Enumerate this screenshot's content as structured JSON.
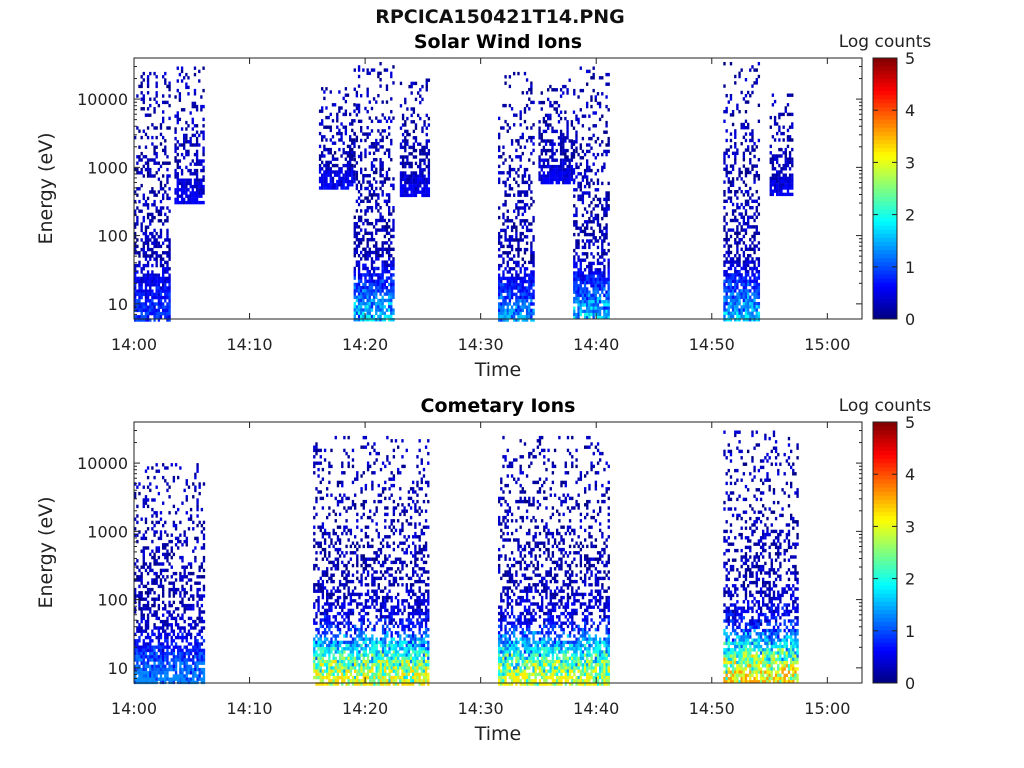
{
  "figure": {
    "title": "RPCICA150421T14.PNG"
  },
  "chart_data": [
    {
      "type": "heatmap",
      "title": "Solar Wind Ions",
      "xlabel": "Time",
      "ylabel": "Energy (eV)",
      "x_ticks": [
        "14:00",
        "14:10",
        "14:20",
        "14:30",
        "14:40",
        "14:50",
        "15:00"
      ],
      "x_tick_minutes": [
        0,
        10,
        20,
        30,
        40,
        50,
        60
      ],
      "xlim_minutes": [
        0,
        63
      ],
      "yscale": "log",
      "ylim": [
        6,
        40000
      ],
      "y_ticks": [
        10,
        100,
        1000,
        10000
      ],
      "y_tick_labels": [
        "10",
        "100",
        "1000",
        "10000"
      ],
      "colorbar": {
        "label": "Log counts",
        "ticks": [
          0,
          1,
          2,
          3,
          4,
          5
        ],
        "range": [
          0,
          5
        ],
        "colormap": "jet"
      },
      "bursts": [
        {
          "t_start": 0.0,
          "t_end": 3.0,
          "e_min": 6,
          "e_max": 25000,
          "peak": 1.0
        },
        {
          "t_start": 3.5,
          "t_end": 6.0,
          "e_min": 300,
          "e_max": 30000,
          "peak": 0.6
        },
        {
          "t_start": 16.0,
          "t_end": 19.0,
          "e_min": 500,
          "e_max": 15000,
          "peak": 0.7
        },
        {
          "t_start": 19.0,
          "t_end": 22.5,
          "e_min": 6,
          "e_max": 35000,
          "peak": 2.0
        },
        {
          "t_start": 23.0,
          "t_end": 25.5,
          "e_min": 400,
          "e_max": 20000,
          "peak": 0.6
        },
        {
          "t_start": 31.5,
          "t_end": 34.5,
          "e_min": 6,
          "e_max": 25000,
          "peak": 1.6
        },
        {
          "t_start": 35.0,
          "t_end": 38.0,
          "e_min": 600,
          "e_max": 20000,
          "peak": 0.6
        },
        {
          "t_start": 38.0,
          "t_end": 41.0,
          "e_min": 6,
          "e_max": 30000,
          "peak": 2.0
        },
        {
          "t_start": 51.0,
          "t_end": 54.0,
          "e_min": 6,
          "e_max": 35000,
          "peak": 1.9
        },
        {
          "t_start": 55.0,
          "t_end": 57.0,
          "e_min": 400,
          "e_max": 15000,
          "peak": 0.6
        }
      ]
    },
    {
      "type": "heatmap",
      "title": "Cometary Ions",
      "xlabel": "Time",
      "ylabel": "Energy (eV)",
      "x_ticks": [
        "14:00",
        "14:10",
        "14:20",
        "14:30",
        "14:40",
        "14:50",
        "15:00"
      ],
      "x_tick_minutes": [
        0,
        10,
        20,
        30,
        40,
        50,
        60
      ],
      "xlim_minutes": [
        0,
        63
      ],
      "yscale": "log",
      "ylim": [
        6,
        40000
      ],
      "y_ticks": [
        10,
        100,
        1000,
        10000
      ],
      "y_tick_labels": [
        "10",
        "100",
        "1000",
        "10000"
      ],
      "colorbar": {
        "label": "Log counts",
        "ticks": [
          0,
          1,
          2,
          3,
          4,
          5
        ],
        "range": [
          0,
          5
        ],
        "colormap": "jet"
      },
      "bursts": [
        {
          "t_start": 0.0,
          "t_end": 6.0,
          "e_min": 6,
          "e_max": 10000,
          "peak": 1.3
        },
        {
          "t_start": 15.5,
          "t_end": 25.5,
          "e_min": 6,
          "e_max": 25000,
          "peak": 3.3
        },
        {
          "t_start": 31.5,
          "t_end": 41.0,
          "e_min": 6,
          "e_max": 25000,
          "peak": 3.2
        },
        {
          "t_start": 51.0,
          "t_end": 57.5,
          "e_min": 6,
          "e_max": 30000,
          "peak": 3.6
        }
      ]
    }
  ]
}
